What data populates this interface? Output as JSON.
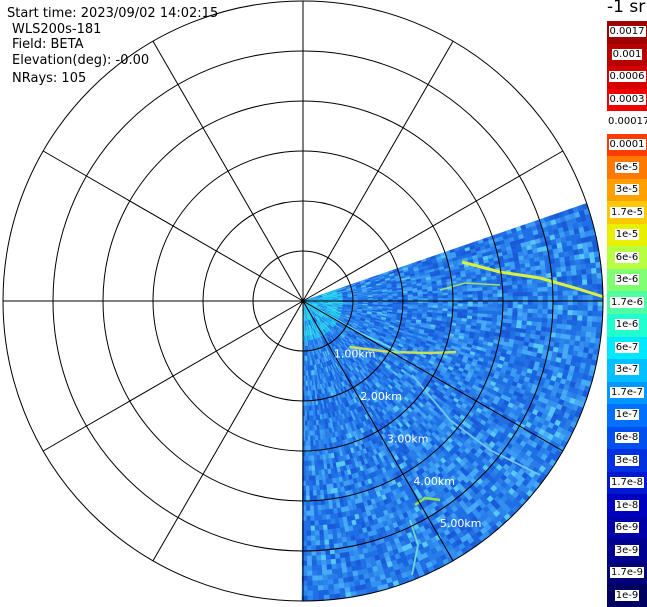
{
  "info": {
    "start_time": "Start time: 2023/09/02 14:02:15",
    "device": "WLS200s-181",
    "field": "Field: BETA",
    "elevation": "Elevation(deg): -0.00",
    "nrays": "NRays: 105"
  },
  "chart_data": {
    "type": "heatmap",
    "projection": "polar (PPI scan)",
    "range_rings_km": [
      1,
      2,
      3,
      4,
      5
    ],
    "range_labels": [
      "1.00km",
      "2.00km",
      "3.00km",
      "4.00km",
      "5.00km"
    ],
    "radial_lines_every_deg": 30,
    "outer_radius_km": 6,
    "scan_sector_deg": {
      "from_north_clockwise_start": 71,
      "from_north_clockwise_end": 180
    },
    "field": "BETA",
    "colorbar": {
      "title": "-1 sr",
      "scale": "log",
      "labels": [
        "0.0017",
        "0.001",
        "0.0006",
        "0.0003",
        "0.00017",
        "0.0001",
        "6e-5",
        "3e-5",
        "1.7e-5",
        "1e-5",
        "6e-6",
        "3e-6",
        "1.7e-6",
        "1e-6",
        "6e-7",
        "3e-7",
        "1.7e-7",
        "1e-7",
        "6e-8",
        "3e-8",
        "1.7e-8",
        "1e-8",
        "6e-9",
        "3e-9",
        "1.7e-9",
        "1e-9"
      ],
      "colors": [
        "#a00000",
        "#b80000",
        "#d40000",
        "#f00000",
        "#ffffff",
        "#ff3c00",
        "#ff7800",
        "#ffa000",
        "#ffc800",
        "#e8f000",
        "#b8ff40",
        "#80ff70",
        "#50ffa0",
        "#20ffd0",
        "#00e8ff",
        "#00c0ff",
        "#0098ff",
        "#0070ff",
        "#0050f0",
        "#0030e0",
        "#0018d0",
        "#0000c0",
        "#0000a8",
        "#000090",
        "#000078",
        "#000060"
      ]
    }
  }
}
